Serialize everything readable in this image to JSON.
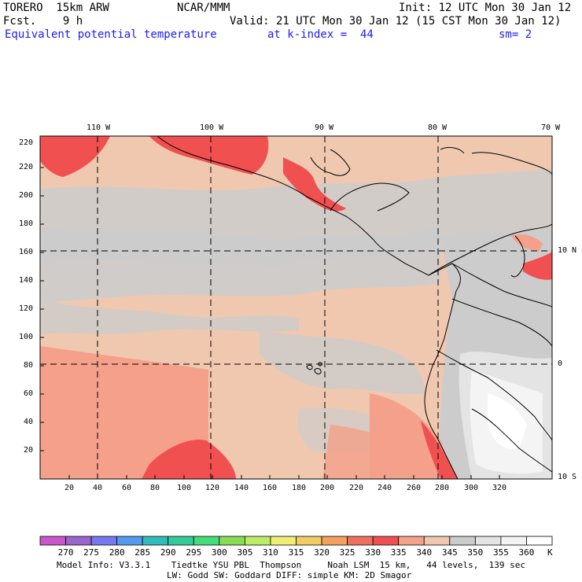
{
  "header": {
    "model": "TORERO  15km ARW",
    "org": "NCAR/MMM",
    "init": "Init: 12 UTC Mon 30 Jan 12",
    "fcst": "Fcst.    9 h",
    "valid": "Valid: 21 UTC Mon 30 Jan 12 (15 CST Mon 30 Jan 12)",
    "field": "Equivalent potential temperature",
    "level": "at k-index =  44",
    "smooth": "sm= 2"
  },
  "axes": {
    "top_lon_labels": [
      "110 W",
      "100 W",
      "90 W",
      "80 W",
      "70 W"
    ],
    "right_lat_labels": [
      "10 N",
      "0",
      "10 S"
    ],
    "left_y_ticks": [
      "20",
      "40",
      "60",
      "80",
      "100",
      "120",
      "140",
      "160",
      "180",
      "200",
      "220"
    ],
    "bottom_x_ticks": [
      "20",
      "40",
      "60",
      "80",
      "100",
      "120",
      "140",
      "160",
      "180",
      "200",
      "220",
      "240",
      "260",
      "280",
      "300",
      "320"
    ]
  },
  "colorbar": {
    "unit": "K",
    "labels": [
      "270",
      "275",
      "280",
      "285",
      "290",
      "295",
      "300",
      "305",
      "310",
      "315",
      "320",
      "325",
      "330",
      "335",
      "340",
      "345",
      "350",
      "355",
      "360"
    ],
    "colors": [
      "#cc55cc",
      "#9966cc",
      "#7777ee",
      "#5599ee",
      "#33bbbb",
      "#33cc99",
      "#44dd77",
      "#88dd55",
      "#bbee66",
      "#eeee77",
      "#f4cc66",
      "#f4a060",
      "#f07060",
      "#f05050",
      "#f4a08a",
      "#f0c8b0",
      "#cccccc",
      "#e4e4e4",
      "#f4f4f4",
      "#ffffff"
    ]
  },
  "footer": {
    "line1": "Model Info: V3.3.1    Tiedtke YSU PBL  Thompson     Noah LSM  15 km,   44 levels,  139 sec",
    "line2": "LW: Godd SW: Goddard DIFF: simple KM: 2D Smagor"
  }
}
